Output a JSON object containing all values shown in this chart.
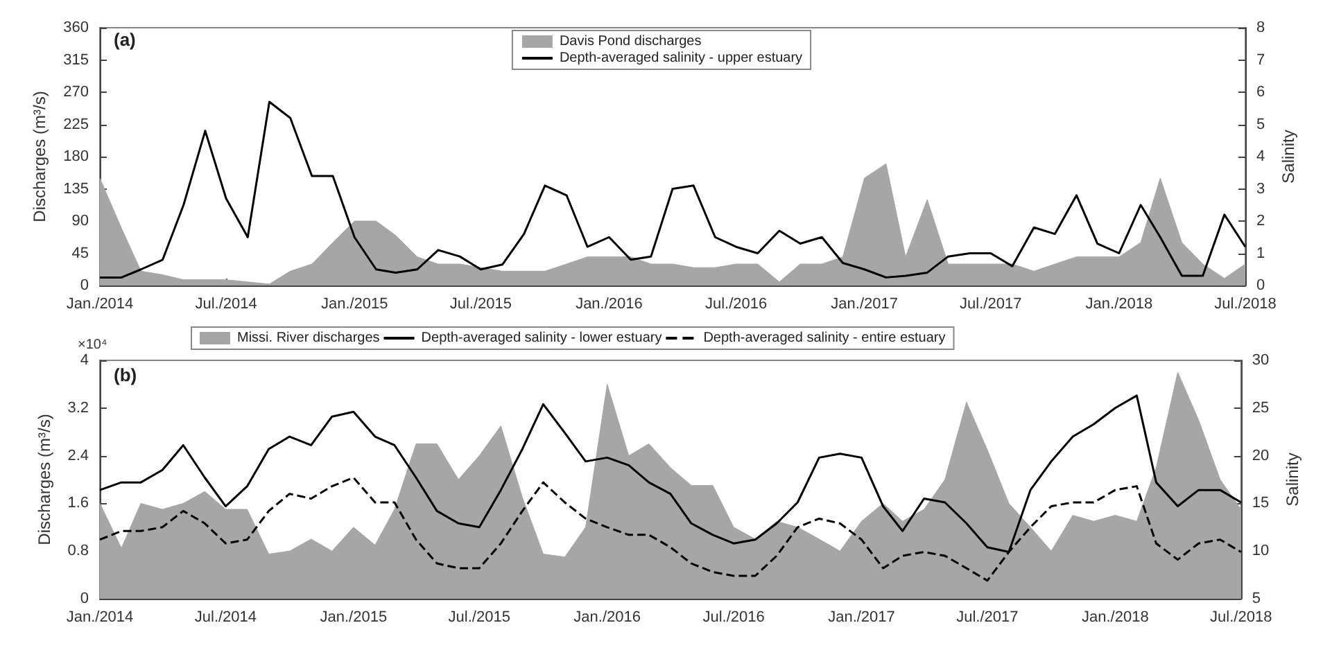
{
  "chart_data": [
    {
      "type": "area",
      "xlabel": null,
      "ylabel": "Discharges (m³/s)",
      "y2label": "Salinity",
      "annotations": [
        "(a)"
      ],
      "x": [
        "2014-01",
        "2014-02",
        "2014-03",
        "2014-04",
        "2014-05",
        "2014-06",
        "2014-07",
        "2014-08",
        "2014-09",
        "2014-10",
        "2014-11",
        "2014-12",
        "2015-01",
        "2015-02",
        "2015-03",
        "2015-04",
        "2015-05",
        "2015-06",
        "2015-07",
        "2015-08",
        "2015-09",
        "2015-10",
        "2015-11",
        "2015-12",
        "2016-01",
        "2016-02",
        "2016-03",
        "2016-04",
        "2016-05",
        "2016-06",
        "2016-07",
        "2016-08",
        "2016-09",
        "2016-10",
        "2016-11",
        "2016-12",
        "2017-01",
        "2017-02",
        "2017-03",
        "2017-04",
        "2017-05",
        "2017-06",
        "2017-07",
        "2017-08",
        "2017-09",
        "2017-10",
        "2017-11",
        "2017-12",
        "2018-01",
        "2018-02",
        "2018-03",
        "2018-04",
        "2018-05",
        "2018-06",
        "2018-07"
      ],
      "series": [
        {
          "name": "Davis Pond discharges",
          "color": "#a6a6a6",
          "values": [
            150,
            80,
            20,
            15,
            8,
            8,
            8,
            5,
            2,
            20,
            30,
            60,
            90,
            90,
            70,
            40,
            30,
            30,
            25,
            20,
            20,
            20,
            30,
            40,
            40,
            40,
            30,
            30,
            25,
            25,
            30,
            30,
            5,
            30,
            30,
            40,
            150,
            170,
            40,
            120,
            30,
            30,
            30,
            30,
            20,
            30,
            40,
            40,
            40,
            60,
            150,
            60,
            30,
            10,
            30
          ]
        },
        {
          "name": "Depth-averaged salinity - upper estuary",
          "type": "line",
          "axis": "y2",
          "color": "#000000",
          "values": [
            0.25,
            0.25,
            0.5,
            0.8,
            2.5,
            4.8,
            2.7,
            1.5,
            5.7,
            5.2,
            3.4,
            3.4,
            1.5,
            0.5,
            0.4,
            0.5,
            1.1,
            0.9,
            0.5,
            0.65,
            1.6,
            3.1,
            2.8,
            1.2,
            1.5,
            0.8,
            0.9,
            3.0,
            3.1,
            1.5,
            1.2,
            1.0,
            1.7,
            1.3,
            1.5,
            0.7,
            0.5,
            0.25,
            0.3,
            0.4,
            0.9,
            1.0,
            1.0,
            0.6,
            1.8,
            1.6,
            2.8,
            1.3,
            1.0,
            2.5,
            1.5,
            0.3,
            0.3,
            2.2,
            1.2
          ]
        }
      ],
      "xlim": [
        "2014-01",
        "2018-07"
      ],
      "xticks": [
        {
          "value": "2014-01",
          "label": "Jan./2014"
        },
        {
          "value": "2014-04",
          "label": null
        },
        {
          "value": "2014-07",
          "label": "Jul./2014"
        },
        {
          "value": "2014-10",
          "label": null
        },
        {
          "value": "2015-01",
          "label": "Jan./2015"
        },
        {
          "value": "2015-04",
          "label": null
        },
        {
          "value": "2015-07",
          "label": "Jul./2015"
        },
        {
          "value": "2015-10",
          "label": null
        },
        {
          "value": "2016-01",
          "label": "Jan./2016"
        },
        {
          "value": "2016-04",
          "label": null
        },
        {
          "value": "2016-07",
          "label": "Jul./2016"
        },
        {
          "value": "2016-10",
          "label": null
        },
        {
          "value": "2017-01",
          "label": "Jan./2017"
        },
        {
          "value": "2017-04",
          "label": null
        },
        {
          "value": "2017-07",
          "label": "Jul./2017"
        },
        {
          "value": "2017-10",
          "label": null
        },
        {
          "value": "2018-01",
          "label": "Jan./2018"
        },
        {
          "value": "2018-04",
          "label": null
        },
        {
          "value": "2018-07",
          "label": "Jul./2018"
        }
      ],
      "ylim": [
        0,
        360
      ],
      "yticks": [
        0,
        45,
        90,
        135,
        180,
        225,
        270,
        315,
        360
      ],
      "y2lim": [
        0,
        8
      ],
      "y2ticks": [
        0,
        1,
        2,
        3,
        4,
        5,
        6,
        7,
        8
      ],
      "legend": "top",
      "grid": false,
      "marker": "none"
    },
    {
      "type": "area",
      "ylabel": "Discharges (m³/s)",
      "y2label": "Salinity",
      "annotations": [
        "(b)",
        "×10⁴"
      ],
      "x": [
        "2014-01",
        "2014-02",
        "2014-03",
        "2014-04",
        "2014-05",
        "2014-06",
        "2014-07",
        "2014-08",
        "2014-09",
        "2014-10",
        "2014-11",
        "2014-12",
        "2015-01",
        "2015-02",
        "2015-03",
        "2015-04",
        "2015-05",
        "2015-06",
        "2015-07",
        "2015-08",
        "2015-09",
        "2015-10",
        "2015-11",
        "2015-12",
        "2016-01",
        "2016-02",
        "2016-03",
        "2016-04",
        "2016-05",
        "2016-06",
        "2016-07",
        "2016-08",
        "2016-09",
        "2016-10",
        "2016-11",
        "2016-12",
        "2017-01",
        "2017-02",
        "2017-03",
        "2017-04",
        "2017-05",
        "2017-06",
        "2017-07",
        "2017-08",
        "2017-09",
        "2017-10",
        "2017-11",
        "2017-12",
        "2018-01",
        "2018-02",
        "2018-03",
        "2018-04",
        "2018-05",
        "2018-06",
        "2018-07"
      ],
      "series": [
        {
          "name": "Missi. River discharges",
          "color": "#a6a6a6",
          "values": [
            1.6,
            0.85,
            1.6,
            1.5,
            1.6,
            1.8,
            1.5,
            1.5,
            0.75,
            0.8,
            1.0,
            0.8,
            1.2,
            0.9,
            1.5,
            2.6,
            2.6,
            2.0,
            2.4,
            2.9,
            1.7,
            0.75,
            0.7,
            1.2,
            3.6,
            2.4,
            2.6,
            2.2,
            1.9,
            1.9,
            1.2,
            1.0,
            1.3,
            1.2,
            1.0,
            0.8,
            1.3,
            1.6,
            1.3,
            1.5,
            2.0,
            3.3,
            2.5,
            1.6,
            1.2,
            0.8,
            1.4,
            1.3,
            1.4,
            1.3,
            2.2,
            3.8,
            3.0,
            2.0,
            1.5
          ]
        },
        {
          "name": "Depth-averaged salinity - lower estuary",
          "type": "line",
          "axis": "y2",
          "color": "#000000",
          "line_style": "solid",
          "values": [
            16.4,
            17.2,
            17.2,
            18.5,
            21.1,
            17.7,
            14.7,
            16.8,
            20.7,
            22.0,
            21.1,
            24.1,
            24.6,
            22.0,
            21.1,
            17.7,
            14.2,
            12.9,
            12.5,
            16.4,
            20.7,
            25.4,
            22.4,
            19.4,
            19.8,
            19.0,
            17.2,
            16.0,
            12.9,
            11.7,
            10.8,
            11.2,
            12.9,
            15.1,
            19.8,
            20.2,
            19.8,
            14.7,
            12.1,
            15.5,
            15.1,
            12.9,
            10.4,
            9.9,
            16.4,
            19.4,
            22.0,
            23.3,
            25.0,
            26.3,
            17.2,
            14.7,
            16.4,
            16.4,
            15.1
          ]
        },
        {
          "name": "Depth-averaged salinity - entire estuary",
          "type": "line",
          "axis": "y2",
          "color": "#000000",
          "line_style": "dashed",
          "values": [
            11.2,
            12.1,
            12.1,
            12.5,
            14.2,
            12.9,
            10.8,
            11.2,
            14.2,
            16.0,
            15.5,
            16.8,
            17.7,
            15.1,
            15.1,
            11.2,
            8.7,
            8.2,
            8.2,
            10.8,
            14.2,
            17.2,
            15.1,
            13.4,
            12.5,
            11.7,
            11.7,
            10.4,
            8.7,
            7.8,
            7.4,
            7.4,
            9.5,
            12.5,
            13.4,
            12.9,
            11.2,
            8.2,
            9.5,
            9.9,
            9.5,
            8.2,
            6.9,
            9.9,
            12.5,
            14.7,
            15.1,
            15.1,
            16.4,
            16.8,
            10.8,
            9.1,
            10.8,
            11.2,
            9.9
          ]
        }
      ],
      "xlim": [
        "2014-01",
        "2018-07"
      ],
      "xticks": [
        {
          "value": "2014-01",
          "label": "Jan./2014"
        },
        {
          "value": "2014-04",
          "label": null
        },
        {
          "value": "2014-07",
          "label": "Jul./2014"
        },
        {
          "value": "2014-10",
          "label": null
        },
        {
          "value": "2015-01",
          "label": "Jan./2015"
        },
        {
          "value": "2015-04",
          "label": null
        },
        {
          "value": "2015-07",
          "label": "Jul./2015"
        },
        {
          "value": "2015-10",
          "label": null
        },
        {
          "value": "2016-01",
          "label": "Jan./2016"
        },
        {
          "value": "2016-04",
          "label": null
        },
        {
          "value": "2016-07",
          "label": "Jul./2016"
        },
        {
          "value": "2016-10",
          "label": null
        },
        {
          "value": "2017-01",
          "label": "Jan./2017"
        },
        {
          "value": "2017-04",
          "label": null
        },
        {
          "value": "2017-07",
          "label": "Jul./2017"
        },
        {
          "value": "2017-10",
          "label": null
        },
        {
          "value": "2018-01",
          "label": "Jan./2018"
        },
        {
          "value": "2018-04",
          "label": null
        },
        {
          "value": "2018-07",
          "label": "Jul./2018"
        }
      ],
      "ylim": [
        0,
        4
      ],
      "yticks": [
        0,
        0.8,
        1.6,
        2.4,
        3.2,
        4
      ],
      "y2lim": [
        5,
        30
      ],
      "y2ticks": [
        5,
        10,
        15,
        20,
        25,
        30
      ],
      "legend": "top left",
      "grid": false,
      "marker": "none"
    }
  ]
}
